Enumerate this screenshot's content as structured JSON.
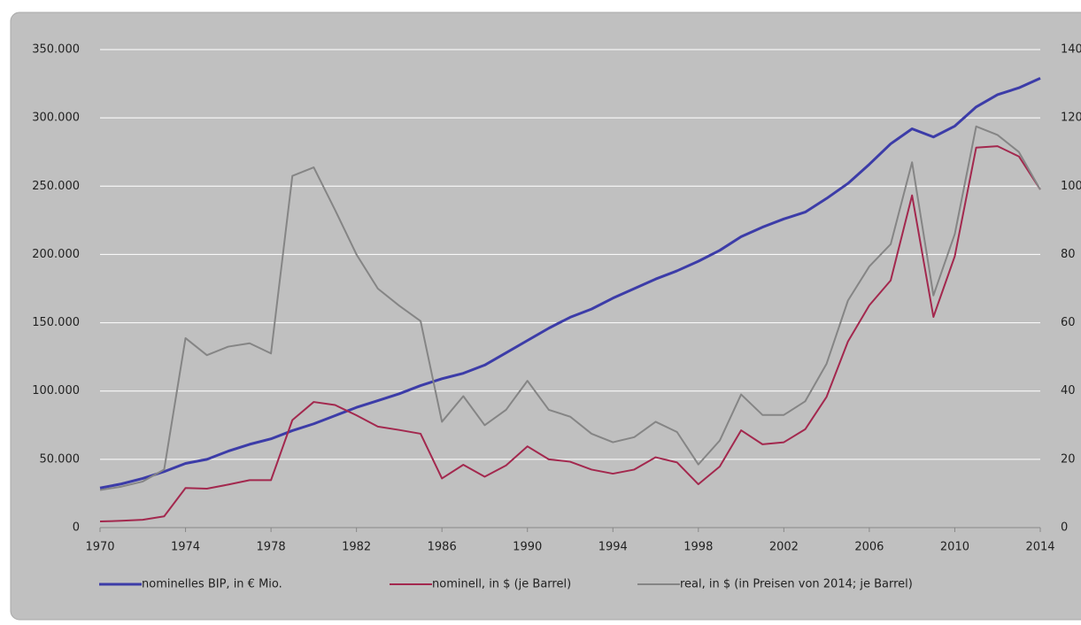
{
  "chart_data": {
    "type": "line",
    "x": [
      1970,
      1971,
      1972,
      1973,
      1974,
      1975,
      1976,
      1977,
      1978,
      1979,
      1980,
      1981,
      1982,
      1983,
      1984,
      1985,
      1986,
      1987,
      1988,
      1989,
      1990,
      1991,
      1992,
      1993,
      1994,
      1995,
      1996,
      1997,
      1998,
      1999,
      2000,
      2001,
      2002,
      2003,
      2004,
      2005,
      2006,
      2007,
      2008,
      2009,
      2010,
      2011,
      2012,
      2013,
      2014
    ],
    "xlim": [
      1970,
      2014
    ],
    "xticks": [
      1970,
      1974,
      1978,
      1982,
      1986,
      1990,
      1994,
      1998,
      2002,
      2006,
      2010,
      2014
    ],
    "ylim": [
      0,
      350000
    ],
    "yticks": [
      0,
      {
        "value": 50000,
        "label": "50.000"
      },
      {
        "value": 100000,
        "label": "100.000"
      },
      {
        "value": 150000,
        "label": "150.000"
      },
      {
        "value": 200000,
        "label": "200.000"
      },
      {
        "value": 250000,
        "label": "250.000"
      },
      {
        "value": 300000,
        "label": "300.000"
      },
      {
        "value": 350000,
        "label": "350.000"
      }
    ],
    "y2lim": [
      0,
      140
    ],
    "y2ticks": [
      0,
      20,
      40,
      60,
      80,
      100,
      120,
      140
    ],
    "grid": true,
    "legend": "bottom",
    "series": [
      {
        "name": "nominelles BIP, in € Mio.",
        "color": "#3c3ca8",
        "values": [
          29000,
          32000,
          36000,
          41000,
          47000,
          50000,
          56000,
          61000,
          65000,
          71000,
          76000,
          82000,
          88000,
          93000,
          98000,
          104000,
          109000,
          113000,
          119000,
          128000,
          137000,
          146000,
          154000,
          160000,
          168000,
          175000,
          182000,
          188000,
          195000,
          203000,
          213000,
          220000,
          226000,
          231000,
          241000,
          252000,
          266000,
          281000,
          292000,
          286000,
          294000,
          308000,
          317000,
          322000,
          329000
        ]
      },
      {
        "name": "nominell, in $ (je Barrel)",
        "color": "#a3284e",
        "axis": "y2",
        "values": [
          1.8,
          2,
          2.3,
          3.3,
          11.6,
          11.4,
          12.6,
          13.9,
          13.9,
          31.5,
          36.8,
          35.9,
          32.9,
          29.6,
          28.6,
          27.5,
          14.4,
          18.4,
          14.9,
          18.2,
          23.8,
          20,
          19.3,
          17,
          15.8,
          17,
          20.6,
          19.1,
          12.7,
          17.9,
          28.5,
          24.4,
          25,
          28.8,
          38.3,
          54.5,
          65.1,
          72.4,
          97.3,
          61.7,
          79.5,
          111.3,
          111.7,
          108.7,
          99
        ]
      },
      {
        "name": "real, in $ (in Preisen von 2014; je Barrel)",
        "color": "#858585",
        "axis": "y2",
        "values": [
          11,
          12,
          13.5,
          17,
          55.5,
          50.5,
          53,
          54,
          51,
          103,
          105.5,
          93,
          80,
          70,
          65,
          60.5,
          31,
          38.5,
          30,
          34.5,
          43,
          34.5,
          32.5,
          27.5,
          25,
          26.5,
          31,
          28,
          18.5,
          25.5,
          39,
          33,
          33,
          37,
          48,
          66.5,
          76.5,
          83,
          107,
          68,
          86,
          117.5,
          115,
          110,
          99
        ]
      }
    ]
  }
}
